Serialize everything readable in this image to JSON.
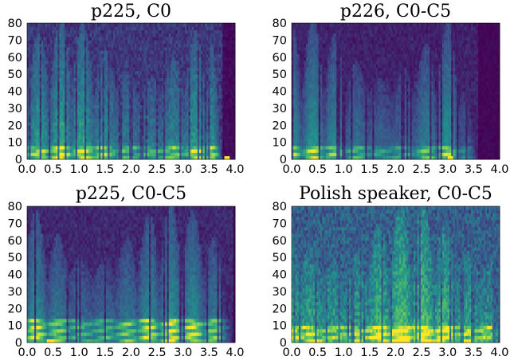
{
  "chart_data": [
    {
      "type": "heatmap",
      "title": "p225, C0",
      "xlabel": "",
      "ylabel": "",
      "xlim": [
        0,
        4.0
      ],
      "ylim": [
        0,
        80
      ],
      "xticks": [
        "0.0",
        "0.5",
        "1.0",
        "1.5",
        "2.0",
        "2.5",
        "3.0",
        "3.5",
        "4.0"
      ],
      "yticks": [
        "0",
        "10",
        "20",
        "30",
        "40",
        "50",
        "60",
        "70",
        "80"
      ],
      "colormap": [
        "#440154",
        "#3b528b",
        "#21918c",
        "#5ec962",
        "#fde725"
      ],
      "profile": {
        "floor": 0.17,
        "band_top": 9,
        "band_level": 0.55,
        "silence_cutoff": 3.75,
        "fade_start": 3.55,
        "bright_spot": [
          3.85,
          1
        ]
      },
      "grid": false,
      "legend": "none"
    },
    {
      "type": "heatmap",
      "title": "p226, C0-C5",
      "xlabel": "",
      "ylabel": "",
      "xlim": [
        0,
        4.0
      ],
      "ylim": [
        0,
        80
      ],
      "xticks": [
        "0.0",
        "0.5",
        "1.0",
        "1.5",
        "2.0",
        "2.5",
        "3.0",
        "3.5",
        "4.0"
      ],
      "yticks": [
        "0",
        "10",
        "20",
        "30",
        "40",
        "50",
        "60",
        "70",
        "80"
      ],
      "colormap": [
        "#440154",
        "#3b528b",
        "#21918c",
        "#5ec962",
        "#fde725"
      ],
      "profile": {
        "floor": 0.1,
        "band_top": 8,
        "band_level": 0.5,
        "silence_cutoff": 3.6,
        "fade_start": 3.1,
        "bright_spot": [
          3.05,
          1
        ]
      },
      "grid": false,
      "legend": "none"
    },
    {
      "type": "heatmap",
      "title": "p225, C0-C5",
      "xlabel": "",
      "ylabel": "",
      "xlim": [
        0,
        4.0
      ],
      "ylim": [
        0,
        80
      ],
      "xticks": [
        "0.0",
        "0.5",
        "1.0",
        "1.5",
        "2.0",
        "2.5",
        "3.0",
        "3.5",
        "4.0"
      ],
      "yticks": [
        "0",
        "10",
        "20",
        "30",
        "40",
        "50",
        "60",
        "70",
        "80"
      ],
      "colormap": [
        "#440154",
        "#3b528b",
        "#21918c",
        "#5ec962",
        "#fde725"
      ],
      "profile": {
        "floor": 0.12,
        "band_top": 14,
        "band_level": 0.6,
        "silence_cutoff": 3.95,
        "fade_start": 3.7,
        "bright_spot": [
          0.45,
          1
        ]
      },
      "grid": false,
      "legend": "none"
    },
    {
      "type": "heatmap",
      "title": "Polish speaker, C0-C5",
      "xlabel": "",
      "ylabel": "",
      "xlim": [
        0,
        4.0
      ],
      "ylim": [
        0,
        80
      ],
      "xticks": [
        "0.0",
        "0.5",
        "1.0",
        "1.5",
        "2.0",
        "2.5",
        "3.0",
        "3.5",
        "4.0"
      ],
      "yticks": [
        "0",
        "10",
        "20",
        "30",
        "40",
        "50",
        "60",
        "70",
        "80"
      ],
      "colormap": [
        "#440154",
        "#3b528b",
        "#21918c",
        "#5ec962",
        "#fde725"
      ],
      "profile": {
        "floor": 0.3,
        "band_top": 10,
        "band_level": 0.75,
        "silence_cutoff": 4.0,
        "fade_start": 3.9,
        "bright_spot": [
          2.2,
          2
        ]
      },
      "grid": false,
      "legend": "none"
    }
  ]
}
